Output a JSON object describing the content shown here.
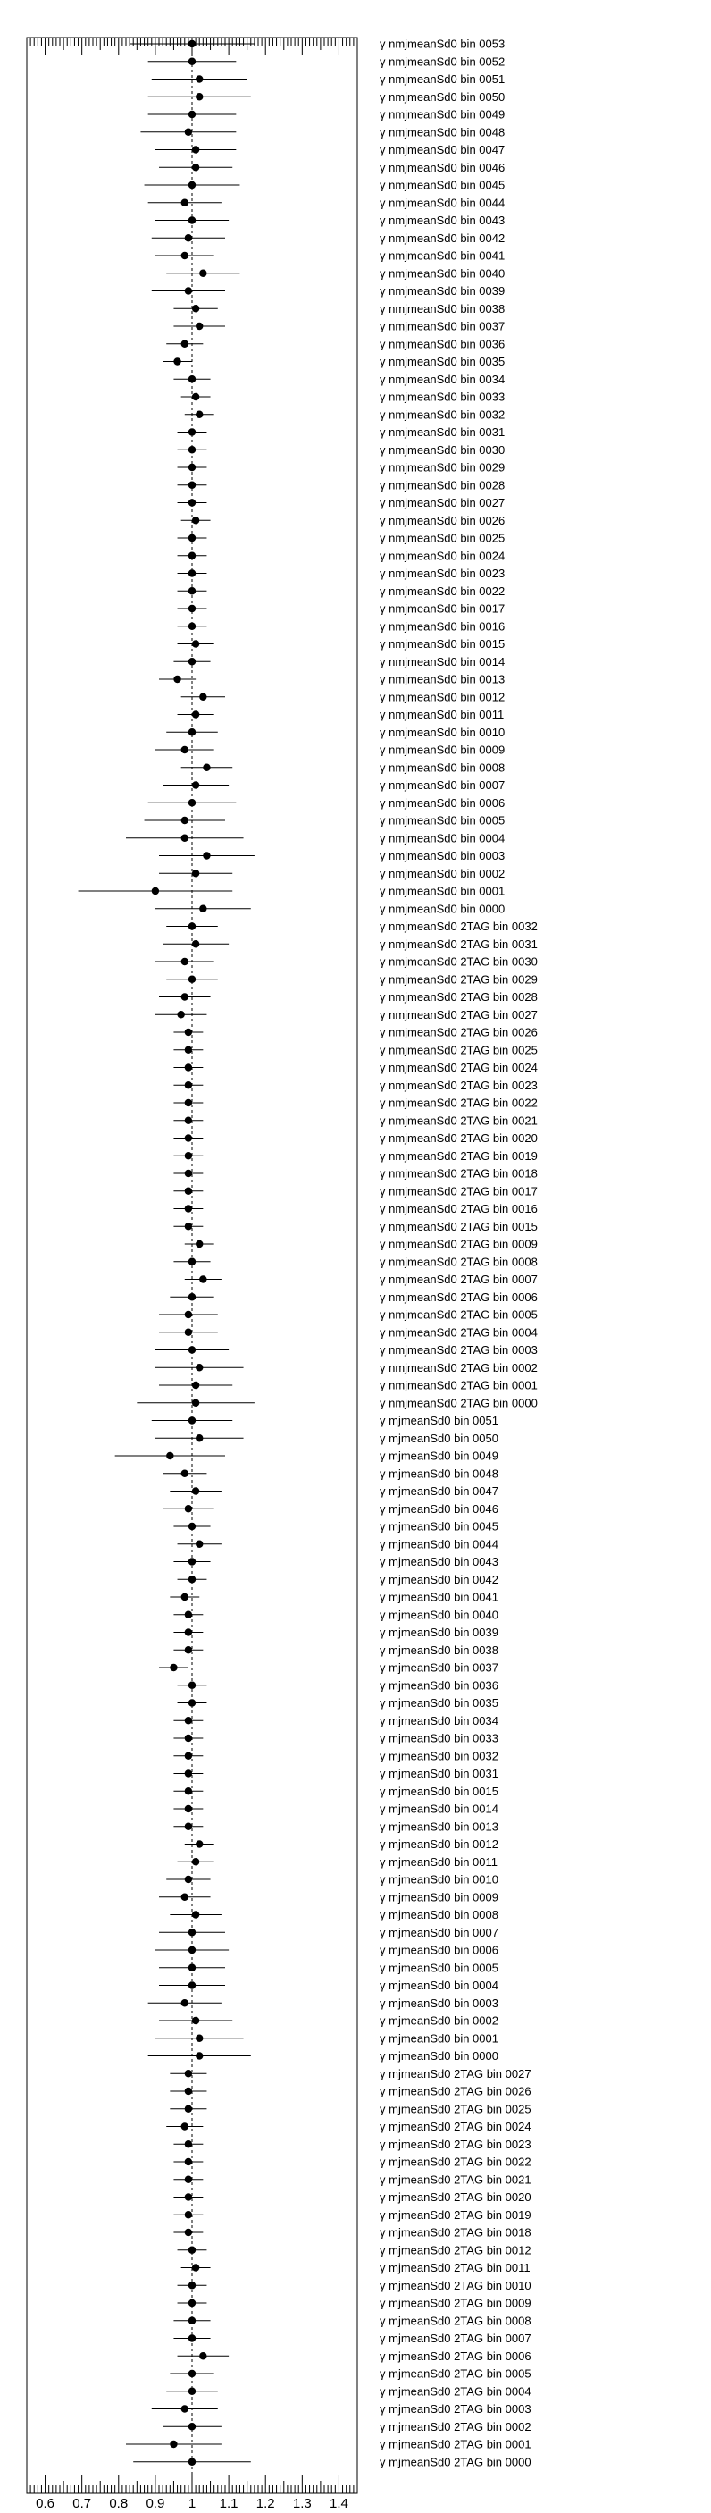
{
  "chart_data": {
    "type": "scatter",
    "orientation": "horizontal-forest",
    "title": "",
    "xlabel": "",
    "ylabel": "",
    "xlim": [
      0.55,
      1.45
    ],
    "xticks": [
      0.6,
      0.7,
      0.8,
      0.9,
      1.0,
      1.1,
      1.2,
      1.3,
      1.4
    ],
    "xtick_labels": [
      "0.6",
      "0.7",
      "0.8",
      "0.9",
      "1",
      "1.1",
      "1.2",
      "1.3",
      "1.4"
    ],
    "reference_line": 1.0,
    "grid": false,
    "legend": "none",
    "marker_color": "#000000",
    "points": [
      {
        "label": "γ nmjmeanSd0 bin 0053",
        "value": 1.0,
        "err": 0.17
      },
      {
        "label": "γ nmjmeanSd0 bin 0052",
        "value": 1.0,
        "err": 0.12
      },
      {
        "label": "γ nmjmeanSd0 bin 0051",
        "value": 1.02,
        "err": 0.13
      },
      {
        "label": "γ nmjmeanSd0 bin 0050",
        "value": 1.02,
        "err": 0.14
      },
      {
        "label": "γ nmjmeanSd0 bin 0049",
        "value": 1.0,
        "err": 0.12
      },
      {
        "label": "γ nmjmeanSd0 bin 0048",
        "value": 0.99,
        "err": 0.13
      },
      {
        "label": "γ nmjmeanSd0 bin 0047",
        "value": 1.01,
        "err": 0.11
      },
      {
        "label": "γ nmjmeanSd0 bin 0046",
        "value": 1.01,
        "err": 0.1
      },
      {
        "label": "γ nmjmeanSd0 bin 0045",
        "value": 1.0,
        "err": 0.13
      },
      {
        "label": "γ nmjmeanSd0 bin 0044",
        "value": 0.98,
        "err": 0.1
      },
      {
        "label": "γ nmjmeanSd0 bin 0043",
        "value": 1.0,
        "err": 0.1
      },
      {
        "label": "γ nmjmeanSd0 bin 0042",
        "value": 0.99,
        "err": 0.1
      },
      {
        "label": "γ nmjmeanSd0 bin 0041",
        "value": 0.98,
        "err": 0.08
      },
      {
        "label": "γ nmjmeanSd0 bin 0040",
        "value": 1.03,
        "err": 0.1
      },
      {
        "label": "γ nmjmeanSd0 bin 0039",
        "value": 0.99,
        "err": 0.1
      },
      {
        "label": "γ nmjmeanSd0 bin 0038",
        "value": 1.01,
        "err": 0.06
      },
      {
        "label": "γ nmjmeanSd0 bin 0037",
        "value": 1.02,
        "err": 0.07
      },
      {
        "label": "γ nmjmeanSd0 bin 0036",
        "value": 0.98,
        "err": 0.05
      },
      {
        "label": "γ nmjmeanSd0 bin 0035",
        "value": 0.96,
        "err": 0.04
      },
      {
        "label": "γ nmjmeanSd0 bin 0034",
        "value": 1.0,
        "err": 0.05
      },
      {
        "label": "γ nmjmeanSd0 bin 0033",
        "value": 1.01,
        "err": 0.04
      },
      {
        "label": "γ nmjmeanSd0 bin 0032",
        "value": 1.02,
        "err": 0.04
      },
      {
        "label": "γ nmjmeanSd0 bin 0031",
        "value": 1.0,
        "err": 0.04
      },
      {
        "label": "γ nmjmeanSd0 bin 0030",
        "value": 1.0,
        "err": 0.04
      },
      {
        "label": "γ nmjmeanSd0 bin 0029",
        "value": 1.0,
        "err": 0.04
      },
      {
        "label": "γ nmjmeanSd0 bin 0028",
        "value": 1.0,
        "err": 0.04
      },
      {
        "label": "γ nmjmeanSd0 bin 0027",
        "value": 1.0,
        "err": 0.04
      },
      {
        "label": "γ nmjmeanSd0 bin 0026",
        "value": 1.01,
        "err": 0.04
      },
      {
        "label": "γ nmjmeanSd0 bin 0025",
        "value": 1.0,
        "err": 0.04
      },
      {
        "label": "γ nmjmeanSd0 bin 0024",
        "value": 1.0,
        "err": 0.04
      },
      {
        "label": "γ nmjmeanSd0 bin 0023",
        "value": 1.0,
        "err": 0.04
      },
      {
        "label": "γ nmjmeanSd0 bin 0022",
        "value": 1.0,
        "err": 0.04
      },
      {
        "label": "γ nmjmeanSd0 bin 0017",
        "value": 1.0,
        "err": 0.04
      },
      {
        "label": "γ nmjmeanSd0 bin 0016",
        "value": 1.0,
        "err": 0.04
      },
      {
        "label": "γ nmjmeanSd0 bin 0015",
        "value": 1.01,
        "err": 0.05
      },
      {
        "label": "γ nmjmeanSd0 bin 0014",
        "value": 1.0,
        "err": 0.05
      },
      {
        "label": "γ nmjmeanSd0 bin 0013",
        "value": 0.96,
        "err": 0.05
      },
      {
        "label": "γ nmjmeanSd0 bin 0012",
        "value": 1.03,
        "err": 0.06
      },
      {
        "label": "γ nmjmeanSd0 bin 0011",
        "value": 1.01,
        "err": 0.05
      },
      {
        "label": "γ nmjmeanSd0 bin 0010",
        "value": 1.0,
        "err": 0.07
      },
      {
        "label": "γ nmjmeanSd0 bin 0009",
        "value": 0.98,
        "err": 0.08
      },
      {
        "label": "γ nmjmeanSd0 bin 0008",
        "value": 1.04,
        "err": 0.07
      },
      {
        "label": "γ nmjmeanSd0 bin 0007",
        "value": 1.01,
        "err": 0.09
      },
      {
        "label": "γ nmjmeanSd0 bin 0006",
        "value": 1.0,
        "err": 0.12
      },
      {
        "label": "γ nmjmeanSd0 bin 0005",
        "value": 0.98,
        "err": 0.11
      },
      {
        "label": "γ nmjmeanSd0 bin 0004",
        "value": 0.98,
        "err": 0.16
      },
      {
        "label": "γ nmjmeanSd0 bin 0003",
        "value": 1.04,
        "err": 0.13
      },
      {
        "label": "γ nmjmeanSd0 bin 0002",
        "value": 1.01,
        "err": 0.1
      },
      {
        "label": "γ nmjmeanSd0 bin 0001",
        "value": 0.9,
        "err": 0.21
      },
      {
        "label": "γ nmjmeanSd0 bin 0000",
        "value": 1.03,
        "err": 0.13
      },
      {
        "label": "γ nmjmeanSd0 2TAG bin 0032",
        "value": 1.0,
        "err": 0.07
      },
      {
        "label": "γ nmjmeanSd0 2TAG bin 0031",
        "value": 1.01,
        "err": 0.09
      },
      {
        "label": "γ nmjmeanSd0 2TAG bin 0030",
        "value": 0.98,
        "err": 0.08
      },
      {
        "label": "γ nmjmeanSd0 2TAG bin 0029",
        "value": 1.0,
        "err": 0.07
      },
      {
        "label": "γ nmjmeanSd0 2TAG bin 0028",
        "value": 0.98,
        "err": 0.07
      },
      {
        "label": "γ nmjmeanSd0 2TAG bin 0027",
        "value": 0.97,
        "err": 0.07
      },
      {
        "label": "γ nmjmeanSd0 2TAG bin 0026",
        "value": 0.99,
        "err": 0.04
      },
      {
        "label": "γ nmjmeanSd0 2TAG bin 0025",
        "value": 0.99,
        "err": 0.04
      },
      {
        "label": "γ nmjmeanSd0 2TAG bin 0024",
        "value": 0.99,
        "err": 0.04
      },
      {
        "label": "γ nmjmeanSd0 2TAG bin 0023",
        "value": 0.99,
        "err": 0.04
      },
      {
        "label": "γ nmjmeanSd0 2TAG bin 0022",
        "value": 0.99,
        "err": 0.04
      },
      {
        "label": "γ nmjmeanSd0 2TAG bin 0021",
        "value": 0.99,
        "err": 0.04
      },
      {
        "label": "γ nmjmeanSd0 2TAG bin 0020",
        "value": 0.99,
        "err": 0.04
      },
      {
        "label": "γ nmjmeanSd0 2TAG bin 0019",
        "value": 0.99,
        "err": 0.04
      },
      {
        "label": "γ nmjmeanSd0 2TAG bin 0018",
        "value": 0.99,
        "err": 0.04
      },
      {
        "label": "γ nmjmeanSd0 2TAG bin 0017",
        "value": 0.99,
        "err": 0.04
      },
      {
        "label": "γ nmjmeanSd0 2TAG bin 0016",
        "value": 0.99,
        "err": 0.04
      },
      {
        "label": "γ nmjmeanSd0 2TAG bin 0015",
        "value": 0.99,
        "err": 0.04
      },
      {
        "label": "γ nmjmeanSd0 2TAG bin 0009",
        "value": 1.02,
        "err": 0.04
      },
      {
        "label": "γ nmjmeanSd0 2TAG bin 0008",
        "value": 1.0,
        "err": 0.05
      },
      {
        "label": "γ nmjmeanSd0 2TAG bin 0007",
        "value": 1.03,
        "err": 0.05
      },
      {
        "label": "γ nmjmeanSd0 2TAG bin 0006",
        "value": 1.0,
        "err": 0.06
      },
      {
        "label": "γ nmjmeanSd0 2TAG bin 0005",
        "value": 0.99,
        "err": 0.08
      },
      {
        "label": "γ nmjmeanSd0 2TAG bin 0004",
        "value": 0.99,
        "err": 0.08
      },
      {
        "label": "γ nmjmeanSd0 2TAG bin 0003",
        "value": 1.0,
        "err": 0.1
      },
      {
        "label": "γ nmjmeanSd0 2TAG bin 0002",
        "value": 1.02,
        "err": 0.12
      },
      {
        "label": "γ nmjmeanSd0 2TAG bin 0001",
        "value": 1.01,
        "err": 0.1
      },
      {
        "label": "γ nmjmeanSd0 2TAG bin 0000",
        "value": 1.01,
        "err": 0.16
      },
      {
        "label": "γ mjmeanSd0 bin 0051",
        "value": 1.0,
        "err": 0.11
      },
      {
        "label": "γ mjmeanSd0 bin 0050",
        "value": 1.02,
        "err": 0.12
      },
      {
        "label": "γ mjmeanSd0 bin 0049",
        "value": 0.94,
        "err": 0.15
      },
      {
        "label": "γ mjmeanSd0 bin 0048",
        "value": 0.98,
        "err": 0.06
      },
      {
        "label": "γ mjmeanSd0 bin 0047",
        "value": 1.01,
        "err": 0.07
      },
      {
        "label": "γ mjmeanSd0 bin 0046",
        "value": 0.99,
        "err": 0.07
      },
      {
        "label": "γ mjmeanSd0 bin 0045",
        "value": 1.0,
        "err": 0.05
      },
      {
        "label": "γ mjmeanSd0 bin 0044",
        "value": 1.02,
        "err": 0.06
      },
      {
        "label": "γ mjmeanSd0 bin 0043",
        "value": 1.0,
        "err": 0.05
      },
      {
        "label": "γ mjmeanSd0 bin 0042",
        "value": 1.0,
        "err": 0.04
      },
      {
        "label": "γ mjmeanSd0 bin 0041",
        "value": 0.98,
        "err": 0.04
      },
      {
        "label": "γ mjmeanSd0 bin 0040",
        "value": 0.99,
        "err": 0.04
      },
      {
        "label": "γ mjmeanSd0 bin 0039",
        "value": 0.99,
        "err": 0.04
      },
      {
        "label": "γ mjmeanSd0 bin 0038",
        "value": 0.99,
        "err": 0.04
      },
      {
        "label": "γ mjmeanSd0 bin 0037",
        "value": 0.95,
        "err": 0.04
      },
      {
        "label": "γ mjmeanSd0 bin 0036",
        "value": 1.0,
        "err": 0.04
      },
      {
        "label": "γ mjmeanSd0 bin 0035",
        "value": 1.0,
        "err": 0.04
      },
      {
        "label": "γ mjmeanSd0 bin 0034",
        "value": 0.99,
        "err": 0.04
      },
      {
        "label": "γ mjmeanSd0 bin 0033",
        "value": 0.99,
        "err": 0.04
      },
      {
        "label": "γ mjmeanSd0 bin 0032",
        "value": 0.99,
        "err": 0.04
      },
      {
        "label": "γ mjmeanSd0 bin 0031",
        "value": 0.99,
        "err": 0.04
      },
      {
        "label": "γ mjmeanSd0 bin 0015",
        "value": 0.99,
        "err": 0.04
      },
      {
        "label": "γ mjmeanSd0 bin 0014",
        "value": 0.99,
        "err": 0.04
      },
      {
        "label": "γ mjmeanSd0 bin 0013",
        "value": 0.99,
        "err": 0.04
      },
      {
        "label": "γ mjmeanSd0 bin 0012",
        "value": 1.02,
        "err": 0.04
      },
      {
        "label": "γ mjmeanSd0 bin 0011",
        "value": 1.01,
        "err": 0.05
      },
      {
        "label": "γ mjmeanSd0 bin 0010",
        "value": 0.99,
        "err": 0.06
      },
      {
        "label": "γ mjmeanSd0 bin 0009",
        "value": 0.98,
        "err": 0.07
      },
      {
        "label": "γ mjmeanSd0 bin 0008",
        "value": 1.01,
        "err": 0.07
      },
      {
        "label": "γ mjmeanSd0 bin 0007",
        "value": 1.0,
        "err": 0.09
      },
      {
        "label": "γ mjmeanSd0 bin 0006",
        "value": 1.0,
        "err": 0.1
      },
      {
        "label": "γ mjmeanSd0 bin 0005",
        "value": 1.0,
        "err": 0.09
      },
      {
        "label": "γ mjmeanSd0 bin 0004",
        "value": 1.0,
        "err": 0.09
      },
      {
        "label": "γ mjmeanSd0 bin 0003",
        "value": 0.98,
        "err": 0.1
      },
      {
        "label": "γ mjmeanSd0 bin 0002",
        "value": 1.01,
        "err": 0.1
      },
      {
        "label": "γ mjmeanSd0 bin 0001",
        "value": 1.02,
        "err": 0.12
      },
      {
        "label": "γ mjmeanSd0 bin 0000",
        "value": 1.02,
        "err": 0.14
      },
      {
        "label": "γ mjmeanSd0 2TAG bin 0027",
        "value": 0.99,
        "err": 0.05
      },
      {
        "label": "γ mjmeanSd0 2TAG bin 0026",
        "value": 0.99,
        "err": 0.05
      },
      {
        "label": "γ mjmeanSd0 2TAG bin 0025",
        "value": 0.99,
        "err": 0.05
      },
      {
        "label": "γ mjmeanSd0 2TAG bin 0024",
        "value": 0.98,
        "err": 0.05
      },
      {
        "label": "γ mjmeanSd0 2TAG bin 0023",
        "value": 0.99,
        "err": 0.04
      },
      {
        "label": "γ mjmeanSd0 2TAG bin 0022",
        "value": 0.99,
        "err": 0.04
      },
      {
        "label": "γ mjmeanSd0 2TAG bin 0021",
        "value": 0.99,
        "err": 0.04
      },
      {
        "label": "γ mjmeanSd0 2TAG bin 0020",
        "value": 0.99,
        "err": 0.04
      },
      {
        "label": "γ mjmeanSd0 2TAG bin 0019",
        "value": 0.99,
        "err": 0.04
      },
      {
        "label": "γ mjmeanSd0 2TAG bin 0018",
        "value": 0.99,
        "err": 0.04
      },
      {
        "label": "γ mjmeanSd0 2TAG bin 0012",
        "value": 1.0,
        "err": 0.04
      },
      {
        "label": "γ mjmeanSd0 2TAG bin 0011",
        "value": 1.01,
        "err": 0.04
      },
      {
        "label": "γ mjmeanSd0 2TAG bin 0010",
        "value": 1.0,
        "err": 0.04
      },
      {
        "label": "γ mjmeanSd0 2TAG bin 0009",
        "value": 1.0,
        "err": 0.04
      },
      {
        "label": "γ mjmeanSd0 2TAG bin 0008",
        "value": 1.0,
        "err": 0.05
      },
      {
        "label": "γ mjmeanSd0 2TAG bin 0007",
        "value": 1.0,
        "err": 0.05
      },
      {
        "label": "γ mjmeanSd0 2TAG bin 0006",
        "value": 1.03,
        "err": 0.07
      },
      {
        "label": "γ mjmeanSd0 2TAG bin 0005",
        "value": 1.0,
        "err": 0.06
      },
      {
        "label": "γ mjmeanSd0 2TAG bin 0004",
        "value": 1.0,
        "err": 0.07
      },
      {
        "label": "γ mjmeanSd0 2TAG bin 0003",
        "value": 0.98,
        "err": 0.09
      },
      {
        "label": "γ mjmeanSd0 2TAG bin 0002",
        "value": 1.0,
        "err": 0.08
      },
      {
        "label": "γ mjmeanSd0 2TAG bin 0001",
        "value": 0.95,
        "err": 0.13
      },
      {
        "label": "γ mjmeanSd0 2TAG bin 0000",
        "value": 1.0,
        "err": 0.16
      }
    ]
  }
}
